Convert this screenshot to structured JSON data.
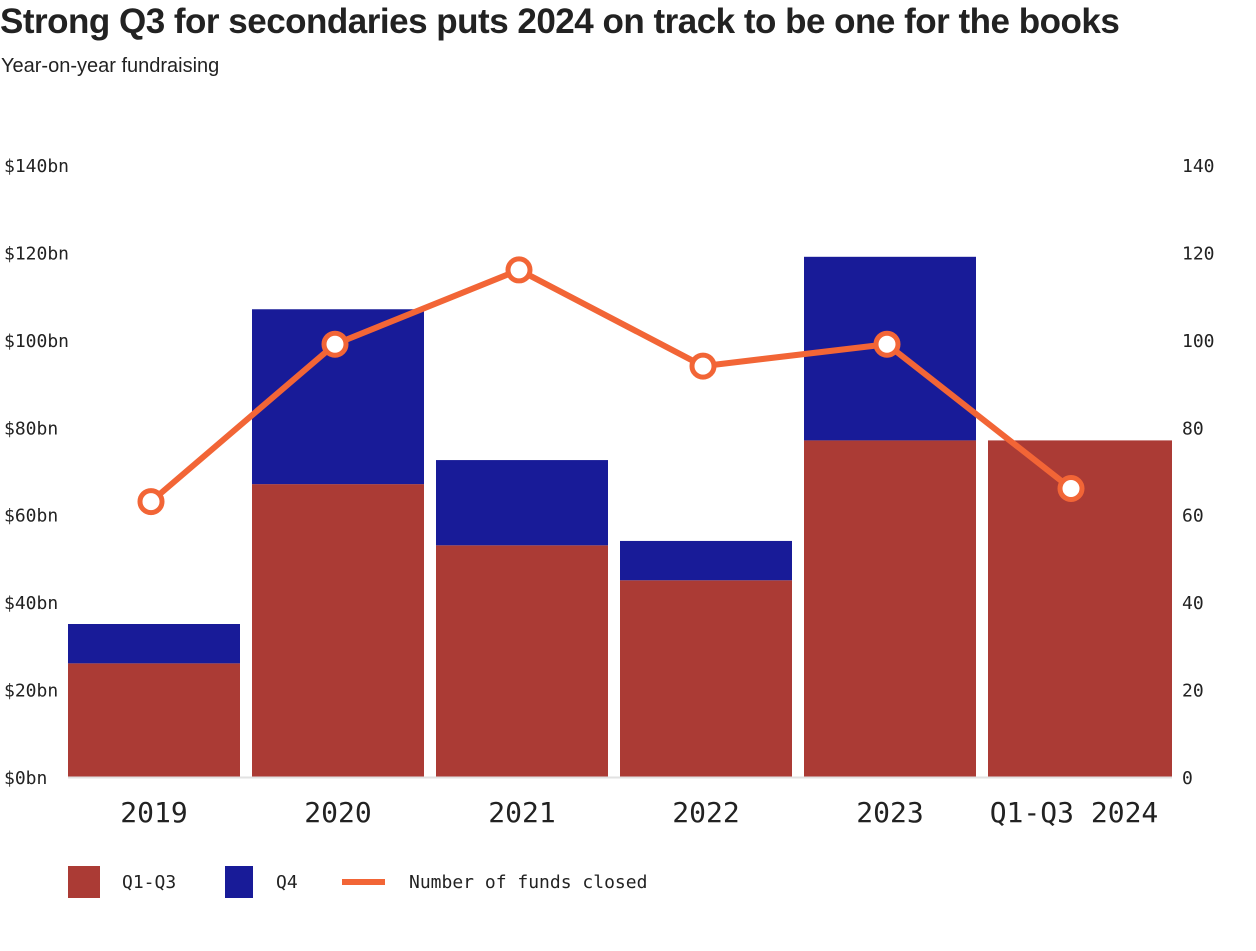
{
  "header": {
    "title": "Strong Q3 for secondaries puts 2024 on track to be one for the books",
    "subtitle": "Year-on-year fundraising"
  },
  "chart_data": {
    "type": "bar",
    "stacked": true,
    "categories": [
      "2019",
      "2020",
      "2021",
      "2022",
      "2023",
      "Q1-Q3 2024"
    ],
    "series": [
      {
        "name": "Q1-Q3",
        "values": [
          26,
          67,
          53,
          45,
          77,
          77
        ],
        "color": "#ab3b35"
      },
      {
        "name": "Q4",
        "values": [
          9,
          40,
          19.5,
          9,
          42,
          0
        ],
        "color": "#181b98"
      }
    ],
    "line_series": {
      "name": "Number of funds closed",
      "values": [
        63,
        99,
        116,
        94,
        99,
        66
      ],
      "color": "#f26536",
      "axis": "right"
    },
    "y_left": {
      "ylim": [
        0,
        140
      ],
      "ticks": [
        0,
        20,
        40,
        60,
        80,
        100,
        120,
        140
      ],
      "tick_labels": [
        "$0bn",
        "$20bn",
        "$40bn",
        "$60bn",
        "$80bn",
        "$100bn",
        "$120bn",
        "$140bn"
      ]
    },
    "y_right": {
      "ylim": [
        0,
        140
      ],
      "ticks": [
        0,
        20,
        40,
        60,
        80,
        100,
        120,
        140
      ],
      "tick_labels": [
        "0",
        "20",
        "40",
        "60",
        "80",
        "100",
        "120",
        "140"
      ]
    },
    "grid": false,
    "legend": {
      "placement": "bottom-left",
      "items": [
        "Q1-Q3",
        "Q4",
        "Number of funds closed"
      ]
    }
  }
}
